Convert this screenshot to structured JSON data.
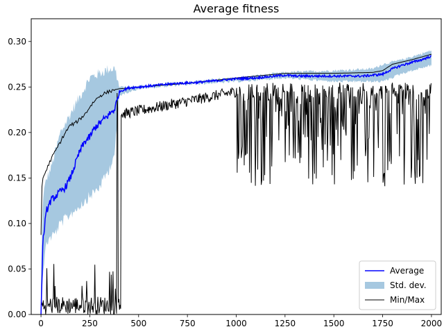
{
  "chart_data": {
    "type": "line",
    "title": "Average fitness",
    "xlabel": "",
    "ylabel": "",
    "xlim": [
      -50,
      2050
    ],
    "ylim": [
      0.0,
      0.325
    ],
    "x_ticks": [
      0,
      250,
      500,
      750,
      1000,
      1250,
      1500,
      1750,
      2000
    ],
    "y_ticks": [
      0.0,
      0.05,
      0.1,
      0.15,
      0.2,
      0.25,
      0.3
    ],
    "x_tick_labels": [
      "0",
      "250",
      "500",
      "750",
      "1000",
      "1250",
      "1500",
      "1750",
      "2000"
    ],
    "y_tick_labels": [
      "0.00",
      "0.05",
      "0.10",
      "0.15",
      "0.20",
      "0.25",
      "0.30"
    ],
    "grid": false,
    "legend_position": "lower-right",
    "legend": [
      {
        "label": "Average",
        "kind": "line",
        "color": "#0000ff"
      },
      {
        "label": "Std. dev.",
        "kind": "patch",
        "color": "#a6c8e0"
      },
      {
        "label": "Min/Max",
        "kind": "line",
        "color": "#000000"
      }
    ],
    "series": [
      {
        "name": "Average",
        "color": "#0000ff",
        "x": [
          0,
          5,
          10,
          20,
          30,
          50,
          75,
          100,
          125,
          150,
          175,
          200,
          225,
          250,
          275,
          300,
          325,
          350,
          375,
          390,
          400,
          425,
          450,
          500,
          600,
          700,
          800,
          900,
          1000,
          1100,
          1200,
          1250,
          1300,
          1400,
          1500,
          1600,
          1650,
          1700,
          1750,
          1800,
          1850,
          1900,
          1950,
          2000
        ],
        "y": [
          0.0,
          0.04,
          0.08,
          0.1,
          0.115,
          0.125,
          0.13,
          0.135,
          0.14,
          0.15,
          0.165,
          0.18,
          0.19,
          0.195,
          0.205,
          0.21,
          0.215,
          0.22,
          0.225,
          0.235,
          0.245,
          0.247,
          0.249,
          0.25,
          0.252,
          0.254,
          0.255,
          0.257,
          0.259,
          0.26,
          0.262,
          0.263,
          0.262,
          0.262,
          0.262,
          0.262,
          0.262,
          0.263,
          0.264,
          0.27,
          0.274,
          0.277,
          0.28,
          0.284
        ]
      },
      {
        "name": "Std. dev.",
        "color": "#a6c8e0",
        "x": [
          0,
          10,
          30,
          50,
          75,
          100,
          150,
          200,
          250,
          300,
          350,
          380,
          400,
          450,
          500,
          700,
          1000,
          1250,
          1500,
          1700,
          1750,
          1850,
          2000
        ],
        "upper": [
          0.04,
          0.13,
          0.15,
          0.16,
          0.18,
          0.2,
          0.22,
          0.24,
          0.26,
          0.265,
          0.27,
          0.27,
          0.25,
          0.25,
          0.251,
          0.255,
          0.26,
          0.266,
          0.268,
          0.27,
          0.275,
          0.28,
          0.29
        ],
        "lower": [
          0.0,
          0.05,
          0.08,
          0.085,
          0.09,
          0.1,
          0.11,
          0.12,
          0.13,
          0.14,
          0.16,
          0.18,
          0.24,
          0.245,
          0.248,
          0.252,
          0.256,
          0.26,
          0.256,
          0.256,
          0.256,
          0.265,
          0.274
        ]
      },
      {
        "name": "Max",
        "color": "#000000",
        "x": [
          0,
          5,
          10,
          30,
          50,
          75,
          100,
          125,
          150,
          175,
          200,
          225,
          250,
          275,
          300,
          325,
          350,
          375,
          400,
          450,
          500,
          750,
          1000,
          1250,
          1500,
          1700,
          1750,
          1800,
          1900,
          2000
        ],
        "y": [
          0.088,
          0.14,
          0.15,
          0.16,
          0.17,
          0.18,
          0.19,
          0.2,
          0.208,
          0.21,
          0.215,
          0.22,
          0.228,
          0.235,
          0.24,
          0.243,
          0.245,
          0.247,
          0.248,
          0.249,
          0.25,
          0.254,
          0.26,
          0.265,
          0.265,
          0.266,
          0.268,
          0.275,
          0.28,
          0.286
        ]
      },
      {
        "name": "Min",
        "color": "#000000",
        "segments": [
          {
            "x_start": 0,
            "x_end": 380,
            "low": 0.0,
            "high": 0.02,
            "spike_max": 0.06
          },
          {
            "x_start": 380,
            "x_end": 410,
            "low": 0.0,
            "high": 0.25,
            "spike_max": 0.25
          },
          {
            "x_start": 410,
            "x_end": 1000,
            "low": 0.22,
            "high": 0.25,
            "spike_max": 0.25
          },
          {
            "x_start": 1000,
            "x_end": 2000,
            "low": 0.14,
            "high": 0.255,
            "spike_min": 0.07
          }
        ]
      }
    ]
  }
}
